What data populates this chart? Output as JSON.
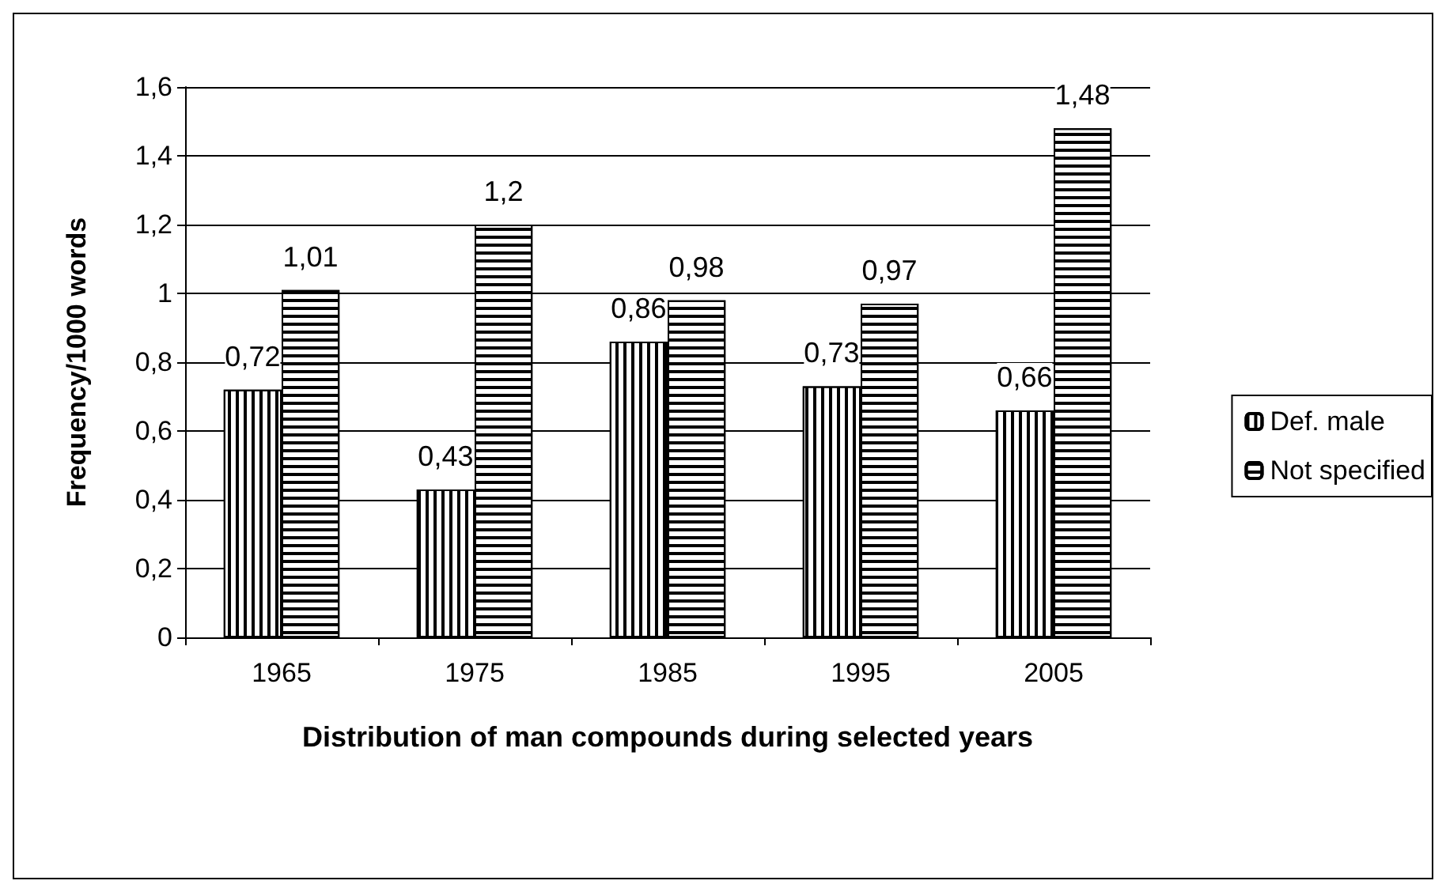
{
  "chart_data": {
    "type": "bar",
    "xlabel": "Distribution of man compounds during selected years",
    "ylabel": "Frequency/1000 words",
    "categories": [
      "1965",
      "1975",
      "1985",
      "1995",
      "2005"
    ],
    "series": [
      {
        "name": "Def. male",
        "color": "#000000",
        "values": [
          0.72,
          0.43,
          0.86,
          0.73,
          0.66
        ],
        "value_labels": [
          "0,72",
          "0,43",
          "0,86",
          "0,73",
          "0,66"
        ]
      },
      {
        "name": "Not specified",
        "color": "#000000",
        "values": [
          1.01,
          1.2,
          0.98,
          0.97,
          1.48
        ],
        "value_labels": [
          "1,01",
          "1,2",
          "0,98",
          "0,97",
          "1,48"
        ]
      }
    ],
    "ylim": [
      0,
      1.6
    ],
    "yticks": [
      0,
      {
        "value": 0.2,
        "label": "0,2"
      },
      {
        "value": 0.4,
        "label": "0,4"
      },
      {
        "value": 0.6,
        "label": "0,6"
      },
      {
        "value": 0.8,
        "label": "0,8"
      },
      1,
      {
        "value": 1.2,
        "label": "1,2"
      },
      {
        "value": 1.4,
        "label": "1,4"
      },
      {
        "value": 1.6,
        "label": "1,6"
      }
    ],
    "grid": "y",
    "legend": "right"
  }
}
